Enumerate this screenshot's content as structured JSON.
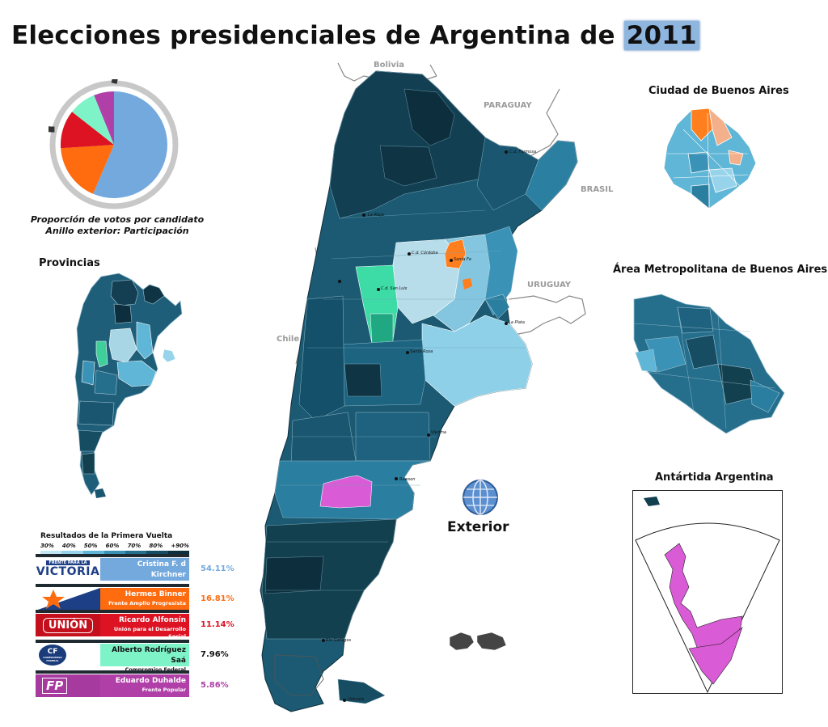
{
  "title": {
    "text": "Elecciones presidenciales de Argentina de",
    "year": "2011"
  },
  "pie": {
    "caption_line1": "Proporción de votos por candidato",
    "caption_line2": "Anillo exterior: Participación",
    "participation_fraction": 0.79,
    "slices": [
      {
        "candidate": "Cristina F. d Kirchner",
        "fraction": 0.5411,
        "color": "#74a9de"
      },
      {
        "candidate": "Hermes Binner",
        "fraction": 0.1681,
        "color": "#ff6b0f"
      },
      {
        "candidate": "Ricardo Alfonsín",
        "fraction": 0.1114,
        "color": "#dd1222"
      },
      {
        "candidate": "Alberto Rodríguez Saá",
        "fraction": 0.0796,
        "color": "#7ff3c8"
      },
      {
        "candidate": "Eduardo Duhalde",
        "fraction": 0.0586,
        "color": "#b040a8"
      }
    ]
  },
  "sections": {
    "provincias": "Provincias",
    "caba": "Ciudad de Buenos Aires",
    "amba": "Área Metropolitana de Buenos Aires",
    "antartida": "Antártida Argentina",
    "exterior": "Exterior"
  },
  "countries": {
    "bolivia": "Bolivia",
    "paraguay": "PARAGUAY",
    "brasil": "BRASIL",
    "uruguay": "URUGUAY",
    "chile": "Chile"
  },
  "cities": [
    "C.d. Formosa",
    "La Rioja",
    "C.d. Córdoba",
    "Santa Fe",
    "C.d. San Luis",
    "La Plata",
    "Santa Rosa",
    "Viedma",
    "Rawson",
    "Río Gallegos",
    "Ushuaia"
  ],
  "results": {
    "title": "Resultados de la Primera Vuelta",
    "scale": [
      "30%",
      "40%",
      "50%",
      "60%",
      "70%",
      "80%",
      "+90%"
    ],
    "scale_colors": [
      "#bfe6f2",
      "#97d3ea",
      "#5fb6d6",
      "#3a93b6",
      "#256e8c",
      "#174d63",
      "#0d2f3d"
    ],
    "candidates": [
      {
        "logo": "VICTORIA",
        "logo_top": "FRENTE PARA LA",
        "name": "Cristina F. d Kirchner",
        "party": "Frente para la Victoria",
        "pct": "54.11%",
        "color": "#74a9de",
        "pct_color": "#74a9de"
      },
      {
        "logo": "",
        "name": "Hermes Binner",
        "party": "Frente Amplio Progresista",
        "pct": "16.81%",
        "color": "#ff6b0f",
        "pct_color": "#ff6b0f"
      },
      {
        "logo": "UNIÓN",
        "name": "Ricardo Alfonsín",
        "party": "Unión para el Desarrollo Social",
        "pct": "11.14%",
        "color": "#dd1222",
        "pct_color": "#dd1222"
      },
      {
        "logo": "CF",
        "logo_sub": "COMPROMISO FEDERAL",
        "name": "Alberto Rodríguez Saá",
        "party": "Compromiso Federal",
        "pct": "7.96%",
        "color": "#7ff3c8",
        "pct_color": "#111111"
      },
      {
        "logo": "FP",
        "name": "Eduardo Duhalde",
        "party": "Frente Popular",
        "pct": "5.86%",
        "color": "#b040a8",
        "pct_color": "#b040a8"
      }
    ]
  }
}
